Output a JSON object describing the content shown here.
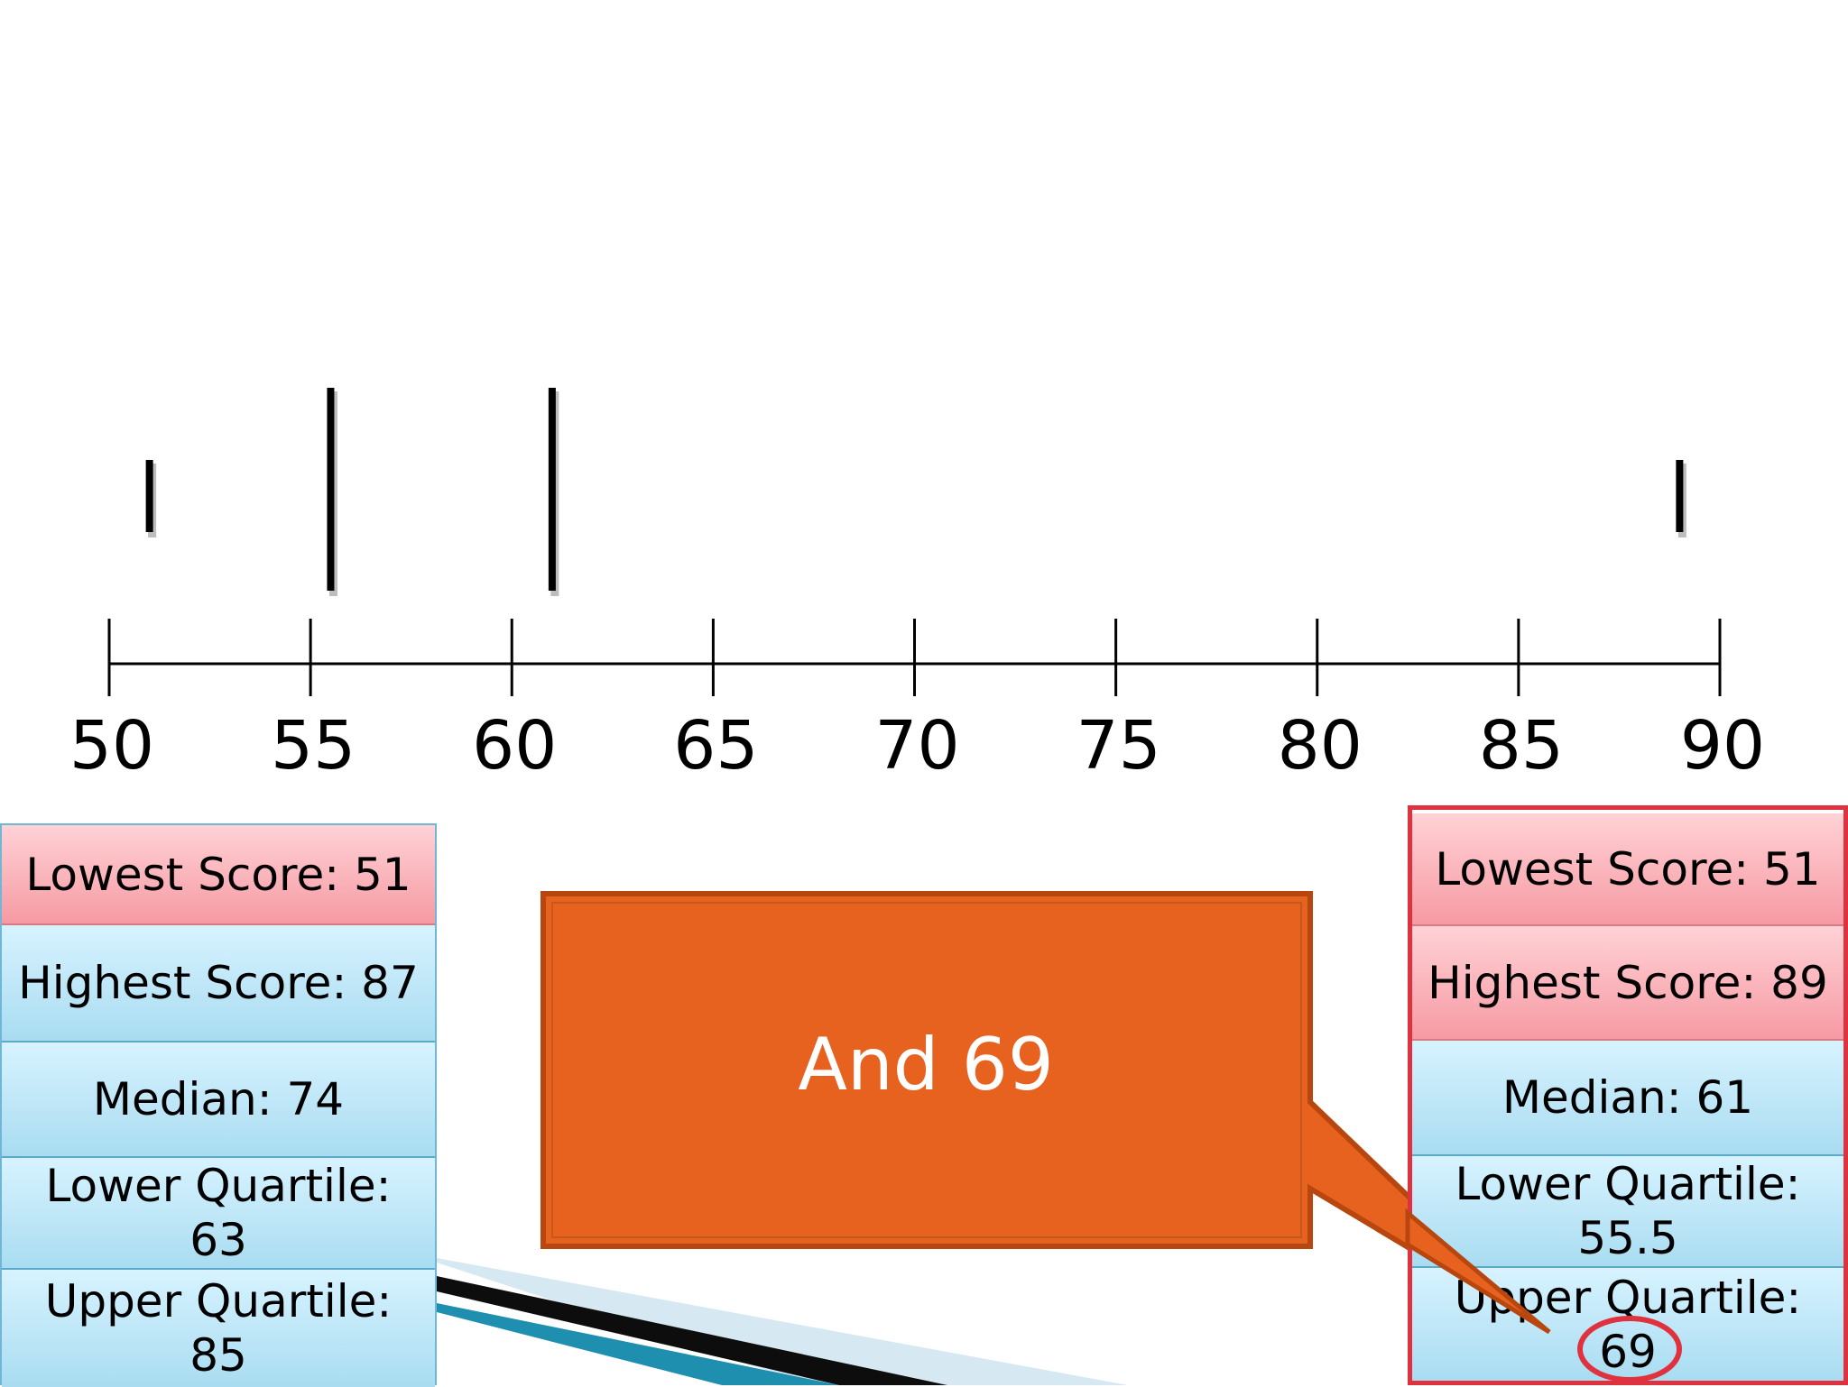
{
  "chart_data": {
    "type": "box-plot-construction",
    "axis": {
      "min": 50,
      "max": 90,
      "ticks": [
        50,
        55,
        60,
        65,
        70,
        75,
        80,
        85,
        90
      ],
      "tick_labels": [
        "50",
        "55",
        "60",
        "65",
        "70",
        "75",
        "80",
        "85",
        "90"
      ]
    },
    "markers": [
      {
        "value": 51,
        "kind": "minimum"
      },
      {
        "value": 55.5,
        "kind": "lower-quartile"
      },
      {
        "value": 61,
        "kind": "median"
      },
      {
        "value": 89,
        "kind": "maximum"
      }
    ]
  },
  "left_panel": {
    "lowest": "Lowest Score: 51",
    "highest": "Highest Score: 87",
    "median": "Median: 74",
    "lower_quartile_label": "Lower Quartile:",
    "lower_quartile_value": "63",
    "upper_quartile_label": "Upper Quartile:",
    "upper_quartile_value": "85"
  },
  "right_panel": {
    "lowest": "Lowest Score: 51",
    "highest": "Highest Score: 89",
    "median": "Median: 61",
    "lower_quartile_label": "Lower Quartile:",
    "lower_quartile_value": "55.5",
    "upper_quartile_label": "Upper Quartile:",
    "upper_quartile_value": "69"
  },
  "callout": {
    "text": "And 69"
  },
  "colors": {
    "callout_fill": "#e8621f",
    "callout_border": "#b8470f",
    "highlight_red": "#e0313f",
    "pink_cell": "#f8aab1",
    "blue_cell": "#bde6f7"
  }
}
